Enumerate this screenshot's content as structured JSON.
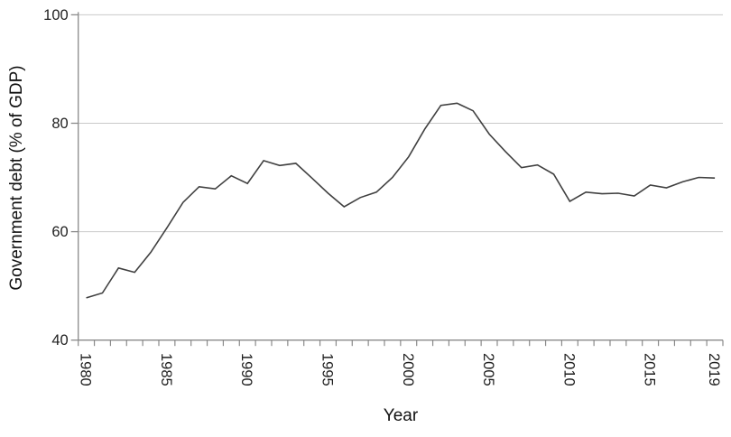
{
  "chart_data": {
    "type": "line",
    "title": "",
    "xlabel": "Year",
    "ylabel": "Government debt (% of GDP)",
    "x": [
      1980,
      1981,
      1982,
      1983,
      1984,
      1985,
      1986,
      1987,
      1988,
      1989,
      1990,
      1991,
      1992,
      1993,
      1994,
      1995,
      1996,
      1997,
      1998,
      1999,
      2000,
      2001,
      2002,
      2003,
      2004,
      2005,
      2006,
      2007,
      2008,
      2009,
      2010,
      2011,
      2012,
      2013,
      2014,
      2015,
      2016,
      2017,
      2018,
      2019
    ],
    "series": [
      {
        "name": "Government debt (% of GDP)",
        "values": [
          47.8,
          48.7,
          53.3,
          52.5,
          56.2,
          60.7,
          65.4,
          68.3,
          67.9,
          70.3,
          68.9,
          73.1,
          72.2,
          72.6,
          69.9,
          67.1,
          64.6,
          66.3,
          67.3,
          70.0,
          73.8,
          78.9,
          83.3,
          83.7,
          82.3,
          78.0,
          74.8,
          71.8,
          72.3,
          70.6,
          65.6,
          67.3,
          67.0,
          67.1,
          66.6,
          68.6,
          68.1,
          69.2,
          70.0,
          69.9
        ]
      }
    ],
    "xlim": [
      1979.5,
      2019.5
    ],
    "ylim": [
      40,
      100
    ],
    "yticks": [
      40,
      60,
      80,
      100
    ],
    "xticks_labeled": [
      1980,
      1985,
      1990,
      1995,
      2000,
      2005,
      2010,
      2015,
      2019
    ],
    "minor_xtick_every_years": 1,
    "gridlines_at": [
      60,
      80,
      100
    ],
    "grid": "horizontal only",
    "legend_position": "none",
    "colors": {
      "line": "#404040",
      "axis": "#8a8a8a",
      "grid": "#c9c9c9",
      "tick_text": "#1f1f1f",
      "title_text": "#111111",
      "background": "#ffffff"
    }
  }
}
